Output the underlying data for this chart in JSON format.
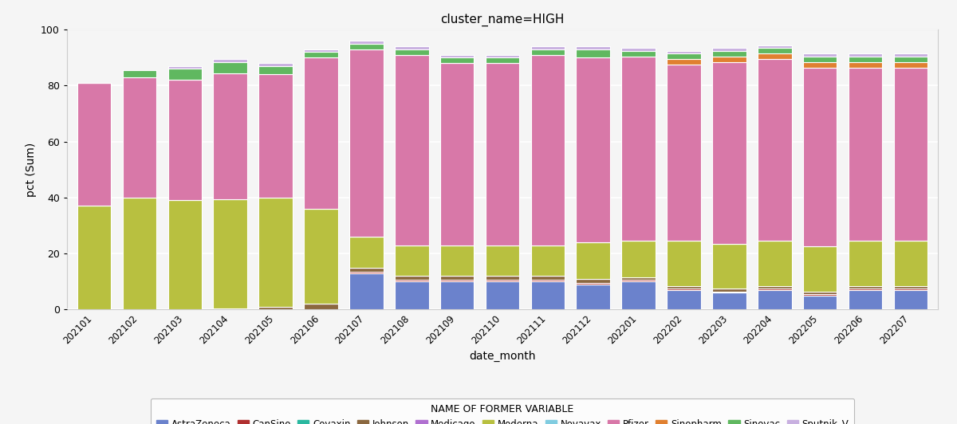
{
  "title": "cluster_name=HIGH",
  "xlabel": "date_month",
  "ylabel": "pct (Sum)",
  "legend_title": "NAME OF FORMER VARIABLE",
  "categories": [
    "202101",
    "202102",
    "202103",
    "202104",
    "202105",
    "202106",
    "202107",
    "202108",
    "202109",
    "202110",
    "202111",
    "202112",
    "202201",
    "202202",
    "202203",
    "202204",
    "202205",
    "202206",
    "202207"
  ],
  "vaccines": [
    "AstraZeneca",
    "CanSino",
    "Covaxin",
    "Johnson",
    "Medicago",
    "Moderna",
    "Novavax",
    "Pfizer",
    "Sinopharm",
    "Sinovac",
    "Sputnik_V"
  ],
  "colors": {
    "AstraZeneca": "#6b82cc",
    "CanSino": "#b03030",
    "Covaxin": "#2ab8a0",
    "Johnson": "#8b6840",
    "Medicago": "#b070d0",
    "Moderna": "#b8c040",
    "Novavax": "#80cce0",
    "Pfizer": "#d878a8",
    "Sinopharm": "#e08030",
    "Sinovac": "#60b860",
    "Sputnik_V": "#c8b0e0"
  },
  "data": {
    "AstraZeneca": [
      0,
      0,
      0,
      0,
      0,
      0,
      13,
      10,
      10,
      10,
      10,
      9,
      10,
      7,
      6,
      7,
      5,
      7,
      7
    ],
    "CanSino": [
      0,
      0,
      0,
      0,
      0,
      0,
      0.5,
      0.5,
      0.5,
      0.5,
      0.5,
      0.5,
      0.5,
      0.5,
      0.5,
      0.5,
      0.5,
      0.5,
      0.5
    ],
    "Covaxin": [
      0,
      0,
      0,
      0,
      0,
      0,
      0,
      0,
      0,
      0,
      0,
      0,
      0,
      0,
      0,
      0,
      0,
      0,
      0
    ],
    "Johnson": [
      0,
      0,
      0,
      0.5,
      1.0,
      2.0,
      1.5,
      1.5,
      1.5,
      1.5,
      1.5,
      1.5,
      1.0,
      1.0,
      1.0,
      1.0,
      1.0,
      1.0,
      1.0
    ],
    "Medicago": [
      0,
      0,
      0,
      0,
      0,
      0,
      0,
      0,
      0,
      0,
      0,
      0,
      0,
      0,
      0,
      0,
      0,
      0,
      0
    ],
    "Moderna": [
      37,
      40,
      39,
      39,
      39,
      34,
      11,
      11,
      11,
      11,
      11,
      13,
      13,
      16,
      16,
      16,
      16,
      16,
      16
    ],
    "Novavax": [
      0,
      0,
      0,
      0,
      0,
      0,
      0,
      0,
      0,
      0,
      0,
      0,
      0,
      0,
      0,
      0,
      0,
      0,
      0
    ],
    "Pfizer": [
      44,
      43,
      43,
      45,
      44,
      54,
      67,
      68,
      65,
      65,
      68,
      66,
      66,
      63,
      65,
      65,
      64,
      62,
      62
    ],
    "Sinopharm": [
      0,
      0,
      0,
      0,
      0,
      0,
      0,
      0,
      0,
      0,
      0,
      0,
      0,
      2,
      2,
      2,
      2,
      2,
      2
    ],
    "Sinovac": [
      0,
      2.5,
      4,
      4,
      3,
      2,
      2,
      2,
      2,
      2,
      2,
      3,
      2,
      2,
      2,
      2,
      2,
      2,
      2
    ],
    "Sputnik_V": [
      0,
      0,
      1,
      1,
      1,
      1,
      1,
      1,
      1,
      1,
      1,
      1,
      1,
      1,
      1,
      1,
      1,
      1,
      1
    ]
  },
  "ylim": [
    0,
    100
  ],
  "yticks": [
    0,
    20,
    40,
    60,
    80,
    100
  ],
  "background_color": "#f5f5f5",
  "plot_background": "#f5f5f5",
  "grid_color": "#ffffff"
}
